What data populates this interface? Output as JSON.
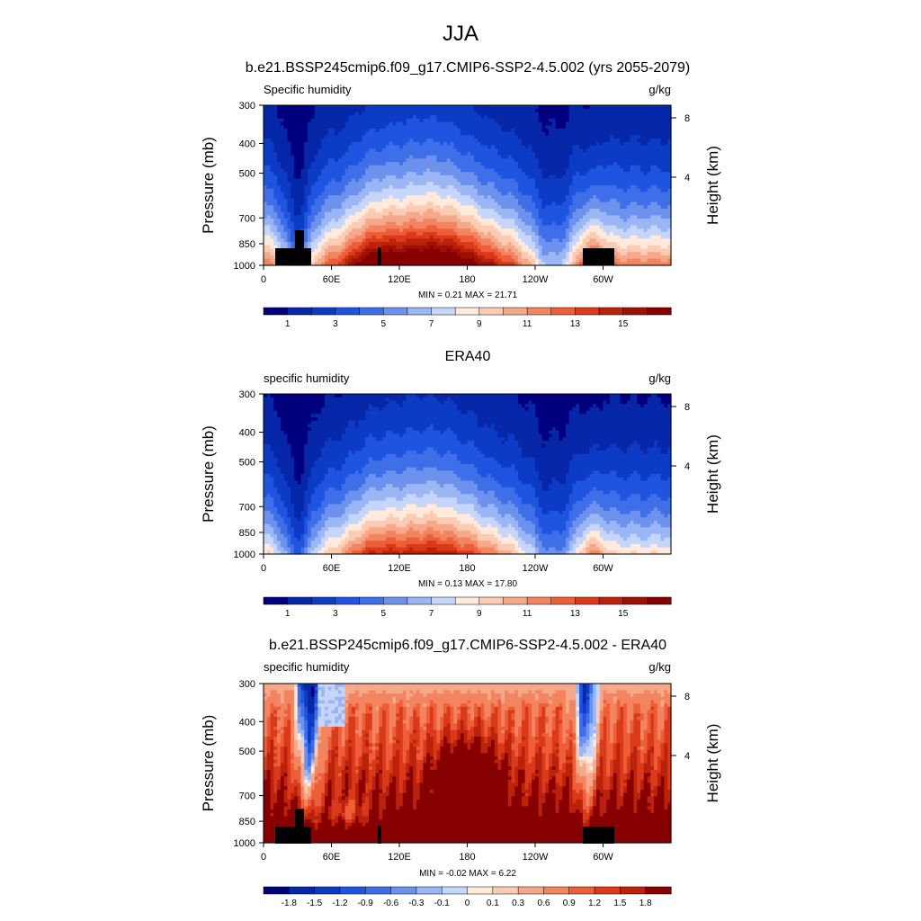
{
  "page_title": "JJA",
  "x_ticks": [
    "0",
    "60E",
    "120E",
    "180",
    "120W",
    "60W"
  ],
  "y_ticks": [
    "300",
    "400",
    "500",
    "700",
    "850",
    "1000"
  ],
  "height_ticks": [
    "8",
    "4"
  ],
  "ylabel": "Pressure (mb)",
  "ylabel_right": "Height (km)",
  "panels": [
    {
      "title": "b.e21.BSSP245cmip6.f09_g17.CMIP6-SSP2-4.5.002 (yrs 2055-2079)",
      "left_label": "Specific humidity",
      "units": "g/kg",
      "stats": "MIN =   0.21  MAX =  21.71",
      "colorbar_labels": [
        "1",
        "3",
        "5",
        "7",
        "9",
        "11",
        "13",
        "15"
      ]
    },
    {
      "title": "ERA40",
      "left_label": "specific humidity",
      "units": "g/kg",
      "stats": "MIN =   0.13  MAX =  17.80",
      "colorbar_labels": [
        "1",
        "3",
        "5",
        "7",
        "9",
        "11",
        "13",
        "15"
      ]
    },
    {
      "title": "b.e21.BSSP245cmip6.f09_g17.CMIP6-SSP2-4.5.002 - ERA40",
      "left_label": "specific humidity",
      "units": "g/kg",
      "stats": "MIN =  -0.02  MAX =   6.22",
      "colorbar_labels": [
        "-1.8",
        "-1.5",
        "-1.2",
        "-0.9",
        "-0.6",
        "-0.3",
        "-0.1",
        "0",
        "0.1",
        "0.3",
        "0.6",
        "0.9",
        "1.2",
        "1.5",
        "1.8"
      ]
    }
  ],
  "chart_data": [
    {
      "type": "heatmap",
      "title": "b.e21.BSSP245cmip6.f09_g17.CMIP6-SSP2-4.5.002 (yrs 2055-2079)",
      "variable": "Specific humidity",
      "units": "g/kg",
      "x_ticks": [
        "0",
        "60E",
        "120E",
        "180",
        "120W",
        "60W"
      ],
      "ylabel": "Pressure (mb)",
      "ylim": [
        1000,
        300
      ],
      "min": 0.21,
      "max": 21.71,
      "levels": [
        1,
        2,
        3,
        4,
        5,
        6,
        7,
        8,
        9,
        10,
        11,
        12,
        13,
        14,
        15,
        16
      ],
      "colors": [
        "#00007f",
        "#0727a9",
        "#0c3bc4",
        "#1e54e0",
        "#3f6fe8",
        "#6d92ee",
        "#9bb6f4",
        "#c6d6fa",
        "#ffeadb",
        "#fbcbb3",
        "#f6a98a",
        "#f28560",
        "#ed5e39",
        "#da3a1a",
        "#bb220b",
        "#a01003",
        "#870000"
      ]
    },
    {
      "type": "heatmap",
      "title": "ERA40",
      "variable": "specific humidity",
      "units": "g/kg",
      "x_ticks": [
        "0",
        "60E",
        "120E",
        "180",
        "120W",
        "60W"
      ],
      "ylabel": "Pressure (mb)",
      "ylim": [
        1000,
        300
      ],
      "min": 0.13,
      "max": 17.8,
      "levels": [
        1,
        2,
        3,
        4,
        5,
        6,
        7,
        8,
        9,
        10,
        11,
        12,
        13,
        14,
        15,
        16
      ],
      "colors": [
        "#00007f",
        "#0727a9",
        "#0c3bc4",
        "#1e54e0",
        "#3f6fe8",
        "#6d92ee",
        "#9bb6f4",
        "#c6d6fa",
        "#ffeadb",
        "#fbcbb3",
        "#f6a98a",
        "#f28560",
        "#ed5e39",
        "#da3a1a",
        "#bb220b",
        "#a01003",
        "#870000"
      ]
    },
    {
      "type": "heatmap",
      "title": "b.e21.BSSP245cmip6.f09_g17.CMIP6-SSP2-4.5.002 - ERA40",
      "variable": "specific humidity",
      "units": "g/kg",
      "x_ticks": [
        "0",
        "60E",
        "120E",
        "180",
        "120W",
        "60W"
      ],
      "ylabel": "Pressure (mb)",
      "ylim": [
        1000,
        300
      ],
      "min": -0.02,
      "max": 6.22,
      "levels": [
        -1.8,
        -1.5,
        -1.2,
        -0.9,
        -0.6,
        -0.3,
        -0.1,
        0,
        0.1,
        0.3,
        0.6,
        0.9,
        1.2,
        1.5,
        1.8
      ],
      "colors": [
        "#00007f",
        "#0727a9",
        "#0c3bc4",
        "#1e54e0",
        "#3f6fe8",
        "#6d92ee",
        "#9bb6f4",
        "#c6d6fa",
        "#ffeadb",
        "#fbcbb3",
        "#f6a98a",
        "#f28560",
        "#ed5e39",
        "#da3a1a",
        "#bb220b",
        "#870000"
      ]
    }
  ]
}
